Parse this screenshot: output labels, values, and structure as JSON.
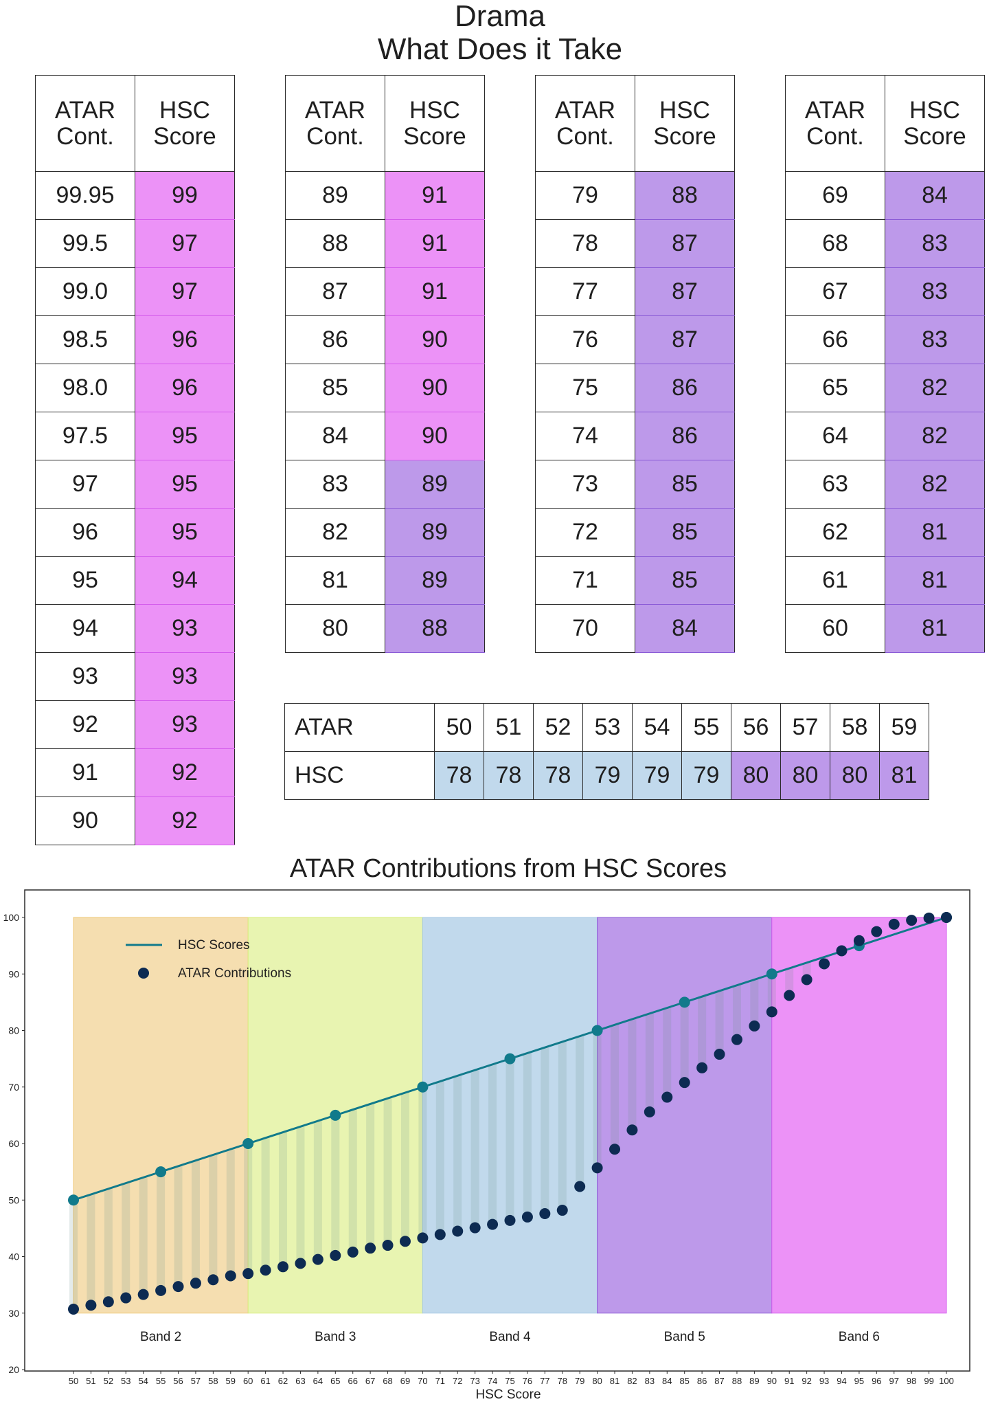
{
  "page": {
    "title_line1": "Drama",
    "title_line2": "What Does it Take",
    "col_header_atar": "ATAR Cont.",
    "col_header_hsc": "HSC Score"
  },
  "colors": {
    "band2": "#f5deb0",
    "band3": "#e8f4b1",
    "band4": "#c1d9ec",
    "band5": "#bd99ea",
    "band6": "#ec92f7",
    "band5_border": "#8a5ad6",
    "band6_border": "#d45cec",
    "hsc_line": "#117a8b",
    "atar_dot": "#0d2b52"
  },
  "tables": [
    {
      "rows": [
        [
          "99.95",
          "99"
        ],
        [
          "99.5",
          "97"
        ],
        [
          "99.0",
          "97"
        ],
        [
          "98.5",
          "96"
        ],
        [
          "98.0",
          "96"
        ],
        [
          "97.5",
          "95"
        ],
        [
          "97",
          "95"
        ],
        [
          "96",
          "95"
        ],
        [
          "95",
          "94"
        ],
        [
          "94",
          "93"
        ],
        [
          "93",
          "93"
        ],
        [
          "92",
          "93"
        ],
        [
          "91",
          "92"
        ],
        [
          "90",
          "92"
        ]
      ]
    },
    {
      "rows": [
        [
          "89",
          "91"
        ],
        [
          "88",
          "91"
        ],
        [
          "87",
          "91"
        ],
        [
          "86",
          "90"
        ],
        [
          "85",
          "90"
        ],
        [
          "84",
          "90"
        ],
        [
          "83",
          "89"
        ],
        [
          "82",
          "89"
        ],
        [
          "81",
          "89"
        ],
        [
          "80",
          "88"
        ]
      ]
    },
    {
      "rows": [
        [
          "79",
          "88"
        ],
        [
          "78",
          "87"
        ],
        [
          "77",
          "87"
        ],
        [
          "76",
          "87"
        ],
        [
          "75",
          "86"
        ],
        [
          "74",
          "86"
        ],
        [
          "73",
          "85"
        ],
        [
          "72",
          "85"
        ],
        [
          "71",
          "85"
        ],
        [
          "70",
          "84"
        ]
      ]
    },
    {
      "rows": [
        [
          "69",
          "84"
        ],
        [
          "68",
          "83"
        ],
        [
          "67",
          "83"
        ],
        [
          "66",
          "83"
        ],
        [
          "65",
          "82"
        ],
        [
          "64",
          "82"
        ],
        [
          "63",
          "82"
        ],
        [
          "62",
          "81"
        ],
        [
          "61",
          "81"
        ],
        [
          "60",
          "81"
        ]
      ]
    }
  ],
  "strip": {
    "atar_label": "ATAR",
    "hsc_label": "HSC",
    "atar": [
      "50",
      "51",
      "52",
      "53",
      "54",
      "55",
      "56",
      "57",
      "58",
      "59"
    ],
    "hsc": [
      "78",
      "78",
      "78",
      "79",
      "79",
      "79",
      "80",
      "80",
      "80",
      "81"
    ]
  },
  "chart_data": {
    "type": "line",
    "title": "ATAR Contributions from HSC Scores",
    "xlabel": "HSC Score",
    "ylabel": "",
    "xlim": [
      50,
      100
    ],
    "ylim": [
      20,
      100
    ],
    "yticks": [
      20,
      30,
      40,
      50,
      60,
      70,
      80,
      90,
      100
    ],
    "grid": false,
    "legend": "top-left",
    "bands": [
      {
        "name": "Band 2",
        "x0": 50,
        "x1": 60
      },
      {
        "name": "Band 3",
        "x0": 60,
        "x1": 70
      },
      {
        "name": "Band 4",
        "x0": 70,
        "x1": 80
      },
      {
        "name": "Band 5",
        "x0": 80,
        "x1": 90
      },
      {
        "name": "Band 6",
        "x0": 90,
        "x1": 100
      }
    ],
    "band_y_range": [
      30,
      100
    ],
    "series": [
      {
        "name": "HSC Scores",
        "type": "line",
        "x": [
          50,
          55,
          60,
          65,
          70,
          75,
          80,
          85,
          90,
          95,
          100
        ],
        "y": [
          50,
          55,
          60,
          65,
          70,
          75,
          80,
          85,
          90,
          95,
          100
        ]
      },
      {
        "name": "ATAR Contributions",
        "type": "scatter",
        "x": [
          50,
          51,
          52,
          53,
          54,
          55,
          56,
          57,
          58,
          59,
          60,
          61,
          62,
          63,
          64,
          65,
          66,
          67,
          68,
          69,
          70,
          71,
          72,
          73,
          74,
          75,
          76,
          77,
          78,
          79,
          80,
          81,
          82,
          83,
          84,
          85,
          86,
          87,
          88,
          89,
          90,
          91,
          92,
          93,
          94,
          95,
          96,
          97,
          98,
          99,
          100
        ],
        "y": [
          30.7,
          31.4,
          32.0,
          32.7,
          33.3,
          34.0,
          34.7,
          35.3,
          35.9,
          36.6,
          37.0,
          37.6,
          38.2,
          38.8,
          39.5,
          40.2,
          40.8,
          41.5,
          42.0,
          42.7,
          43.3,
          43.9,
          44.5,
          45.1,
          45.7,
          46.4,
          47.0,
          47.6,
          48.2,
          52.4,
          55.7,
          59.0,
          62.4,
          65.6,
          68.2,
          70.8,
          73.4,
          75.8,
          78.4,
          80.8,
          83.3,
          86.2,
          89.0,
          91.8,
          94.1,
          95.9,
          97.5,
          98.8,
          99.5,
          99.9,
          100
        ]
      }
    ]
  }
}
